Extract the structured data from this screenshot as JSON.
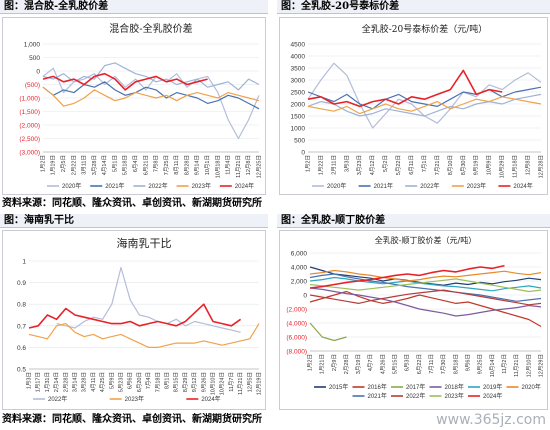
{
  "panels": [
    {
      "header": "图：混合胶-全乳胶价差",
      "chart_data": {
        "type": "line",
        "title": "混合胶-全乳胶价差",
        "ylim": [
          -3000,
          1000
        ],
        "yticks": [
          1000,
          500,
          0,
          -500,
          -1000,
          -1500,
          -2000,
          -2500,
          -3000
        ],
        "ytick_labels": [
          "1,000",
          "500",
          "0",
          "(500)",
          "(1,000)",
          "(1,500)",
          "(2,000)",
          "(2,500)",
          "(3,000)"
        ],
        "categories": [
          "1月2日",
          "1月19日",
          "2月5日",
          "2月22日",
          "3月11日",
          "3月28日",
          "4月14日",
          "5月1日",
          "5月18日",
          "6月4日",
          "6月21日",
          "7月8日",
          "7月25日",
          "8月11日",
          "8月28日",
          "9月14日",
          "10月1日",
          "10月18日",
          "11月4日",
          "11月21日",
          "12月8日",
          "12月25日"
        ],
        "series": [
          {
            "name": "2020年",
            "color": "#b4bdd9",
            "values": [
              -200,
              100,
              -800,
              -400,
              -300,
              -100,
              -500,
              -200,
              -600,
              -300,
              -700,
              -200,
              -400,
              -100,
              -600,
              -300,
              -200,
              -800,
              -1800,
              -2500,
              -1800,
              -900
            ]
          },
          {
            "name": "2021年",
            "color": "#4a72b0",
            "values": [
              -600,
              -900,
              -700,
              -800,
              -500,
              -600,
              -400,
              -700,
              -900,
              -800,
              -600,
              -700,
              -1000,
              -800,
              -900,
              -1000,
              -1200,
              -1100,
              -900,
              -1000,
              -1200,
              -1400
            ]
          },
          {
            "name": "2022年",
            "color": "#9fb2d6",
            "values": [
              -200,
              -300,
              -100,
              -400,
              -200,
              -300,
              200,
              300,
              100,
              -100,
              -200,
              -400,
              -300,
              -500,
              -400,
              -300,
              -600,
              -500,
              -400,
              -700,
              -300,
              -500
            ]
          },
          {
            "name": "2023年",
            "color": "#f0a24a",
            "values": [
              -600,
              -900,
              -1300,
              -1200,
              -1000,
              -700,
              -900,
              -1100,
              -1000,
              -800,
              -900,
              -1000,
              -900,
              -1100,
              -900,
              -800,
              -900,
              -1000,
              -800,
              -900,
              -1000,
              -1100
            ]
          },
          {
            "name": "2024年",
            "color": "#e8222a",
            "values": [
              -300,
              -200,
              -400,
              -300,
              -500,
              -200,
              -100,
              -300,
              -700,
              -400,
              -300,
              -200,
              -400,
              -300,
              -500,
              -400,
              -300,
              null,
              null,
              null,
              null,
              null
            ]
          }
        ]
      }
    },
    {
      "header": "图：全乳胶-20号泰标价差",
      "chart_data": {
        "type": "line",
        "title": "全乳胶-20号泰标价差（元/吨）",
        "ylim": [
          0,
          4500
        ],
        "yticks": [
          0,
          500,
          1000,
          1500,
          2000,
          2500,
          3000,
          3500,
          4000,
          4500
        ],
        "ytick_labels": [
          "0",
          "500",
          "1000",
          "1500",
          "2000",
          "2500",
          "3000",
          "3500",
          "4000",
          "4500"
        ],
        "categories": [
          "1月2日",
          "1月22日",
          "2月11日",
          "3月3日",
          "3月23日",
          "4月12日",
          "5月2日",
          "5月22日",
          "6月11日",
          "7月1日",
          "7月21日",
          "8月10日",
          "8月30日",
          "9月19日",
          "10月9日",
          "10月29日",
          "11月18日",
          "12月8日",
          "12月28日"
        ],
        "series": [
          {
            "name": "2020年",
            "color": "#b4bdd9",
            "values": [
              2200,
              3000,
              3700,
              3200,
              2000,
              1000,
              1600,
              2200,
              2000,
              1500,
              1200,
              1800,
              2500,
              2300,
              2800,
              2600,
              3000,
              3300,
              2900
            ]
          },
          {
            "name": "2021年",
            "color": "#4a72b0",
            "values": [
              2500,
              2300,
              2100,
              2400,
              2000,
              1800,
              2200,
              2400,
              2100,
              2000,
              1900,
              2200,
              2500,
              2400,
              2600,
              2300,
              2500,
              2600,
              2700
            ]
          },
          {
            "name": "2022年",
            "color": "#9fb2d6",
            "values": [
              1900,
              2100,
              2000,
              1700,
              1500,
              1600,
              1800,
              1700,
              1600,
              1500,
              1700,
              1900,
              1800,
              2000,
              2100,
              2000,
              2200,
              2300,
              2400
            ]
          },
          {
            "name": "2023年",
            "color": "#f0a24a",
            "values": [
              1900,
              1800,
              1700,
              1900,
              1600,
              1800,
              2000,
              1800,
              1700,
              1900,
              2100,
              1800,
              2000,
              2200,
              2100,
              2300,
              2200,
              2100,
              2000
            ]
          },
          {
            "name": "2024年",
            "color": "#e8222a",
            "values": [
              2200,
              2300,
              2000,
              2100,
              1900,
              2100,
              2200,
              2000,
              2300,
              2200,
              2400,
              2600,
              3400,
              2400,
              2600,
              2500,
              null,
              null,
              null
            ]
          }
        ]
      }
    },
    {
      "header": "图：海南乳干比",
      "chart_data": {
        "type": "line",
        "title": "海南乳干比",
        "ylim": [
          0.5,
          1.0
        ],
        "yticks": [
          0.5,
          0.6,
          0.7,
          0.8,
          0.9,
          1.0
        ],
        "ytick_labels": [
          "0.5",
          "0.6",
          "0.7",
          "0.8",
          "0.9",
          "1"
        ],
        "categories": [
          "1月3日",
          "1月17日",
          "1月31日",
          "2月14日",
          "2月28日",
          "3月14日",
          "3月28日",
          "4月11日",
          "4月25日",
          "5月9日",
          "5月23日",
          "6月6日",
          "6月20日",
          "7月4日",
          "7月18日",
          "8月1日",
          "8月15日",
          "8月29日",
          "9月12日",
          "9月26日",
          "10月10日",
          "10月24日",
          "11月7日",
          "11月21日",
          "12月5日",
          "12月19日"
        ],
        "series": [
          {
            "name": "2022年",
            "color": "#b4bdd9",
            "values": [
              null,
              null,
              null,
              0.71,
              0.7,
              0.69,
              0.72,
              0.74,
              0.73,
              0.8,
              0.97,
              0.82,
              0.75,
              0.74,
              0.72,
              0.71,
              0.73,
              0.7,
              0.72,
              0.71,
              0.7,
              0.69,
              0.68,
              0.67,
              null,
              null
            ]
          },
          {
            "name": "2023年",
            "color": "#f0a24a",
            "values": [
              0.66,
              0.65,
              0.64,
              0.7,
              0.71,
              0.67,
              0.65,
              0.66,
              0.64,
              0.65,
              0.66,
              0.64,
              0.62,
              0.6,
              0.6,
              0.61,
              0.62,
              0.62,
              0.62,
              0.63,
              0.62,
              0.61,
              0.62,
              0.63,
              0.64,
              0.71
            ]
          },
          {
            "name": "2024年",
            "color": "#e8222a",
            "values": [
              0.69,
              0.7,
              0.75,
              0.73,
              0.78,
              0.75,
              0.74,
              0.73,
              0.72,
              0.71,
              0.71,
              0.72,
              0.7,
              0.71,
              0.72,
              0.71,
              0.7,
              0.72,
              0.76,
              0.8,
              0.72,
              0.71,
              0.7,
              0.73,
              null,
              null
            ]
          }
        ]
      }
    },
    {
      "header": "图：全乳胶-顺丁胶价差",
      "chart_data": {
        "type": "line",
        "title": "全乳胶-顺丁胶价差（元/吨）",
        "ylim": [
          -8000,
          6000
        ],
        "yticks": [
          6000,
          4000,
          2000,
          0,
          -2000,
          -4000,
          -6000,
          -8000
        ],
        "ytick_labels": [
          "6,000",
          "4,000",
          "2,000",
          "0",
          "(2,000)",
          "(4,000)",
          "(6,000)",
          "(8,000)"
        ],
        "categories": [
          "1月2日",
          "1月21日",
          "2月9日",
          "2月28日",
          "3月19日",
          "4月7日",
          "4月26日",
          "5月15日",
          "6月3日",
          "6月22日",
          "7月11日",
          "7月30日",
          "8月18日",
          "9月6日",
          "9月25日",
          "10月14日",
          "11月2日",
          "11月21日",
          "12月10日",
          "12月29日"
        ],
        "series": [
          {
            "name": "2015年",
            "color": "#1f3f7a",
            "values": [
              4000,
              3500,
              3000,
              2800,
              2600,
              2400,
              2000,
              2300,
              2100,
              1800,
              1600,
              1400,
              1700,
              1500,
              1800,
              1600,
              1900,
              2100,
              2400,
              2200
            ]
          },
          {
            "name": "2016年",
            "color": "#c0392b",
            "values": [
              -1000,
              -500,
              0,
              500,
              -200,
              -800,
              -1200,
              -900,
              -500,
              0,
              -400,
              -800,
              -1200,
              -1000,
              -1500,
              -2000,
              -2500,
              -3000,
              -3500,
              -4500
            ]
          },
          {
            "name": "2017年",
            "color": "#8aa84a",
            "values": [
              -4000,
              -6000,
              -6500,
              -6000,
              null,
              null,
              null,
              null,
              null,
              null,
              null,
              null,
              null,
              null,
              null,
              null,
              null,
              null,
              null,
              null
            ]
          },
          {
            "name": "2018年",
            "color": "#7d5a9e",
            "values": [
              1000,
              800,
              500,
              200,
              0,
              -300,
              -600,
              -1000,
              -1500,
              -2000,
              -2300,
              -2600,
              -3000,
              -2800,
              -2500,
              -2200,
              -2000,
              -1800,
              -1500,
              -1700
            ]
          },
          {
            "name": "2019年",
            "color": "#2fa6c1",
            "values": [
              2000,
              2200,
              2500,
              2300,
              2000,
              1800,
              1600,
              1800,
              2000,
              1700,
              1500,
              1300,
              1200,
              1000,
              800,
              600,
              900,
              1100,
              1300,
              1000
            ]
          },
          {
            "name": "2020年",
            "color": "#e88a2a",
            "values": [
              3000,
              3200,
              3500,
              3300,
              3000,
              2800,
              2500,
              2300,
              2000,
              2200,
              2500,
              2700,
              2600,
              2800,
              3000,
              3200,
              3400,
              3100,
              2900,
              3200
            ]
          },
          {
            "name": "2021年",
            "color": "#4a72b0",
            "values": [
              2500,
              2800,
              3000,
              2600,
              2300,
              2000,
              1800,
              1500,
              1200,
              1000,
              800,
              600,
              400,
              200,
              0,
              -300,
              -600,
              -900,
              -700,
              -500
            ]
          },
          {
            "name": "2022年",
            "color": "#b43c3c",
            "values": [
              0,
              -300,
              -600,
              -900,
              -1200,
              -800,
              -500,
              -200,
              100,
              300,
              500,
              700,
              400,
              100,
              -200,
              -500,
              -800,
              -1100,
              -1400,
              -1200
            ]
          },
          {
            "name": "2023年",
            "color": "#9dbf5a",
            "values": [
              1500,
              1300,
              1100,
              900,
              700,
              900,
              1100,
              1300,
              1500,
              1700,
              1900,
              2100,
              2300,
              2000,
              1700,
              1400,
              1100,
              800,
              500,
              700
            ]
          },
          {
            "name": "2024年",
            "color": "#e8222a",
            "values": [
              1000,
              1200,
              1500,
              1800,
              2000,
              2200,
              2500,
              2800,
              3000,
              2800,
              3200,
              3500,
              3300,
              3700,
              4000,
              3800,
              4200,
              null,
              null,
              null
            ]
          }
        ]
      }
    }
  ],
  "source_text": "资料来源：同花顺、隆众资讯、卓创资讯、新湖期货研究所",
  "watermark": "www.365jz.com"
}
